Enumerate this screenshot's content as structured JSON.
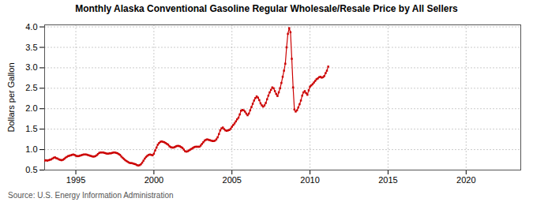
{
  "chart_data": {
    "type": "line",
    "title": "Monthly Alaska Conventional Gasoline Regular Wholesale/Resale Price by All Sellers",
    "ylabel": "Dollars per Gallon",
    "annotation": "Source: U.S. Energy Information Administration",
    "color": "#cc0000",
    "marker": "square",
    "grid": true,
    "xlim": [
      1993.0,
      2023.5
    ],
    "xticks": [
      1995,
      2000,
      2005,
      2010,
      2015,
      2020
    ],
    "ylim": [
      0.5,
      4.05
    ],
    "yticks": [
      0.5,
      {
        "value": 1.0,
        "label": "1.0"
      },
      1.5,
      {
        "value": 2.0,
        "label": "2.0"
      },
      2.5,
      {
        "value": 3.0,
        "label": "3.0"
      },
      3.5,
      {
        "value": 4.0,
        "label": "4.0"
      }
    ],
    "x": [
      1993.0,
      1993.083,
      1993.167,
      1993.25,
      1993.333,
      1993.417,
      1993.5,
      1993.583,
      1993.667,
      1993.75,
      1993.833,
      1993.917,
      1994.0,
      1994.083,
      1994.167,
      1994.25,
      1994.333,
      1994.417,
      1994.5,
      1994.583,
      1994.667,
      1994.75,
      1994.833,
      1994.917,
      1995.0,
      1995.083,
      1995.167,
      1995.25,
      1995.333,
      1995.417,
      1995.5,
      1995.583,
      1995.667,
      1995.75,
      1995.833,
      1995.917,
      1996.0,
      1996.083,
      1996.167,
      1996.25,
      1996.333,
      1996.417,
      1996.5,
      1996.583,
      1996.667,
      1996.75,
      1996.833,
      1996.917,
      1997.0,
      1997.083,
      1997.167,
      1997.25,
      1997.333,
      1997.417,
      1997.5,
      1997.583,
      1997.667,
      1997.75,
      1997.833,
      1997.917,
      1998.0,
      1998.083,
      1998.167,
      1998.25,
      1998.333,
      1998.417,
      1998.5,
      1998.583,
      1998.667,
      1998.75,
      1998.833,
      1998.917,
      1999.0,
      1999.083,
      1999.167,
      1999.25,
      1999.333,
      1999.417,
      1999.5,
      1999.583,
      1999.667,
      1999.75,
      1999.833,
      1999.917,
      2000.0,
      2000.083,
      2000.167,
      2000.25,
      2000.333,
      2000.417,
      2000.5,
      2000.583,
      2000.667,
      2000.75,
      2000.833,
      2000.917,
      2001.0,
      2001.083,
      2001.167,
      2001.25,
      2001.333,
      2001.417,
      2001.5,
      2001.583,
      2001.667,
      2001.75,
      2001.833,
      2001.917,
      2002.0,
      2002.083,
      2002.167,
      2002.25,
      2002.333,
      2002.417,
      2002.5,
      2002.583,
      2002.667,
      2002.75,
      2002.833,
      2002.917,
      2003.0,
      2003.083,
      2003.167,
      2003.25,
      2003.333,
      2003.417,
      2003.5,
      2003.583,
      2003.667,
      2003.75,
      2003.833,
      2003.917,
      2004.0,
      2004.083,
      2004.167,
      2004.25,
      2004.333,
      2004.417,
      2004.5,
      2004.583,
      2004.667,
      2004.75,
      2004.833,
      2004.917,
      2005.0,
      2005.083,
      2005.167,
      2005.25,
      2005.333,
      2005.417,
      2005.5,
      2005.583,
      2005.667,
      2005.75,
      2005.833,
      2005.917,
      2006.0,
      2006.083,
      2006.167,
      2006.25,
      2006.333,
      2006.417,
      2006.5,
      2006.583,
      2006.667,
      2006.75,
      2006.833,
      2006.917,
      2007.0,
      2007.083,
      2007.167,
      2007.25,
      2007.333,
      2007.417,
      2007.5,
      2007.583,
      2007.667,
      2007.75,
      2007.833,
      2007.917,
      2008.0,
      2008.083,
      2008.167,
      2008.25,
      2008.333,
      2008.417,
      2008.5,
      2008.583,
      2008.667,
      2008.75,
      2008.833,
      2008.917,
      2009.0,
      2009.083,
      2009.167,
      2009.25,
      2009.333,
      2009.417,
      2009.5,
      2009.583,
      2009.667,
      2009.75,
      2009.833,
      2009.917,
      2010.0,
      2010.083,
      2010.167,
      2010.25,
      2010.333,
      2010.417,
      2010.5,
      2010.583,
      2010.667,
      2010.75,
      2010.833,
      2010.917,
      2011.0,
      2011.083,
      2011.167
    ],
    "values": [
      0.73,
      0.74,
      0.73,
      0.74,
      0.75,
      0.76,
      0.78,
      0.8,
      0.81,
      0.79,
      0.78,
      0.76,
      0.75,
      0.74,
      0.75,
      0.77,
      0.8,
      0.82,
      0.84,
      0.85,
      0.86,
      0.87,
      0.88,
      0.87,
      0.85,
      0.84,
      0.84,
      0.85,
      0.86,
      0.87,
      0.88,
      0.88,
      0.88,
      0.87,
      0.86,
      0.85,
      0.84,
      0.83,
      0.83,
      0.84,
      0.86,
      0.89,
      0.92,
      0.93,
      0.93,
      0.93,
      0.92,
      0.91,
      0.9,
      0.9,
      0.91,
      0.91,
      0.92,
      0.93,
      0.93,
      0.92,
      0.91,
      0.89,
      0.87,
      0.83,
      0.8,
      0.77,
      0.74,
      0.72,
      0.7,
      0.68,
      0.67,
      0.67,
      0.66,
      0.65,
      0.64,
      0.62,
      0.61,
      0.62,
      0.64,
      0.68,
      0.73,
      0.78,
      0.82,
      0.85,
      0.87,
      0.88,
      0.87,
      0.86,
      0.9,
      0.98,
      1.05,
      1.12,
      1.16,
      1.19,
      1.2,
      1.19,
      1.18,
      1.16,
      1.14,
      1.12,
      1.08,
      1.06,
      1.05,
      1.05,
      1.06,
      1.08,
      1.09,
      1.09,
      1.08,
      1.06,
      1.04,
      1.0,
      0.96,
      0.95,
      0.96,
      0.98,
      1.0,
      1.02,
      1.04,
      1.06,
      1.07,
      1.07,
      1.07,
      1.07,
      1.1,
      1.14,
      1.18,
      1.22,
      1.24,
      1.25,
      1.24,
      1.23,
      1.22,
      1.21,
      1.21,
      1.22,
      1.25,
      1.3,
      1.38,
      1.47,
      1.52,
      1.54,
      1.5,
      1.47,
      1.46,
      1.47,
      1.48,
      1.51,
      1.56,
      1.6,
      1.64,
      1.69,
      1.74,
      1.78,
      1.86,
      1.95,
      1.97,
      1.96,
      1.93,
      1.88,
      1.84,
      1.88,
      1.96,
      2.04,
      2.12,
      2.2,
      2.26,
      2.3,
      2.27,
      2.21,
      2.13,
      2.08,
      2.05,
      2.08,
      2.14,
      2.23,
      2.32,
      2.4,
      2.46,
      2.52,
      2.5,
      2.43,
      2.36,
      2.31,
      2.4,
      2.5,
      2.63,
      2.78,
      2.93,
      3.1,
      3.5,
      3.83,
      3.97,
      3.87,
      3.22,
      2.52,
      1.98,
      1.93,
      1.96,
      2.03,
      2.11,
      2.2,
      2.32,
      2.4,
      2.43,
      2.38,
      2.34,
      2.45,
      2.54,
      2.57,
      2.6,
      2.64,
      2.68,
      2.72,
      2.74,
      2.77,
      2.78,
      2.76,
      2.77,
      2.8,
      2.87,
      2.93,
      3.03
    ]
  }
}
